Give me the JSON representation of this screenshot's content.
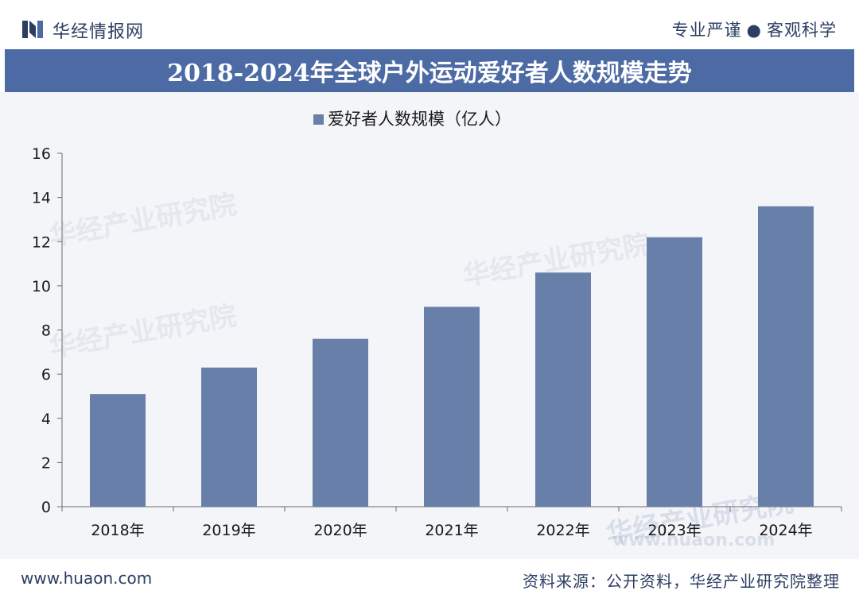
{
  "header": {
    "brand": "华经情报网",
    "slogan_left": "专业严谨",
    "slogan_dot": "●",
    "slogan_right": "客观科学"
  },
  "title": "2018-2024年全球户外运动爱好者人数规模走势",
  "footer": {
    "website": "www.huaon.com",
    "source": "资料来源：公开资料，华经产业研究院整理"
  },
  "watermark": {
    "text": "华经产业研究院",
    "url": "www.huaon.com"
  },
  "colors": {
    "bar": "#687fa9",
    "title_bg": "#4c6aa3",
    "text": "#2c3e62"
  },
  "chart_data": {
    "type": "bar",
    "title": "2018-2024年全球户外运动爱好者人数规模走势",
    "legend": "爱好者人数规模（亿人）",
    "legend_position": "top-center",
    "categories": [
      "2018年",
      "2019年",
      "2020年",
      "2021年",
      "2022年",
      "2023年",
      "2024年"
    ],
    "series": [
      {
        "name": "爱好者人数规模（亿人）",
        "values": [
          5.1,
          6.3,
          7.6,
          9.05,
          10.6,
          12.2,
          13.6
        ]
      }
    ],
    "yticks": [
      "0",
      "2",
      "4",
      "6",
      "8",
      "10",
      "12",
      "14",
      "16"
    ],
    "ylim": [
      0,
      16
    ],
    "xlabel": "",
    "ylabel": "",
    "grid": false
  }
}
